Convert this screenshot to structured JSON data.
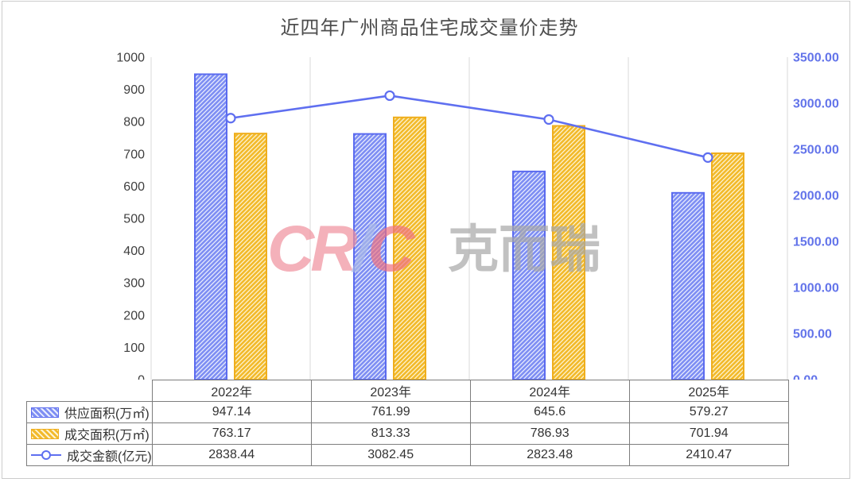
{
  "title": "近四年广州商品住宅成交量价走势",
  "watermark": {
    "parts": [
      {
        "text": "CR",
        "color": "#f0919e"
      },
      {
        "text": "/",
        "color": "#aab9e8"
      },
      {
        "text": "C",
        "color": "#ee7280"
      }
    ],
    "cjk": "克而瑞",
    "cjk_color": "#a8a8a8"
  },
  "chart_data": {
    "type": "bar+line",
    "title": "近四年广州商品住宅成交量价走势",
    "categories": [
      "2022年",
      "2023年",
      "2024年",
      "2025年"
    ],
    "series": [
      {
        "name": "供应面积(万㎡)",
        "type": "bar",
        "axis": "left",
        "values": [
          947.14,
          761.99,
          645.6,
          579.27
        ],
        "border": "#5b6bef",
        "fill_bg": "#e9edfd",
        "fill_stripe": "#7e8ef3"
      },
      {
        "name": "成交面积(万㎡)",
        "type": "bar",
        "axis": "left",
        "values": [
          763.17,
          813.33,
          786.93,
          701.94
        ],
        "border": "#efae1d",
        "fill_bg": "#fdf3d3",
        "fill_stripe": "#f2ba2b"
      },
      {
        "name": "成交金额(亿元)",
        "type": "line",
        "axis": "right",
        "values": [
          2838.44,
          3082.45,
          2823.48,
          2410.47
        ],
        "color": "#5f6ff0",
        "marker": "circle-open"
      }
    ],
    "left_axis": {
      "min": 0,
      "max": 1000,
      "ticks": [
        "0",
        "100",
        "200",
        "300",
        "400",
        "500",
        "600",
        "700",
        "800",
        "900",
        "1000"
      ],
      "label_color": "#3f3f3f"
    },
    "right_axis": {
      "min": 0,
      "max": 3500,
      "ticks": [
        "0.00",
        "500.00",
        "1000.00",
        "1500.00",
        "2000.00",
        "2500.00",
        "3000.00",
        "3500.00"
      ],
      "label_color": "#6374ea"
    },
    "grid": "vertical-category-boundaries",
    "legend_position": "table-left"
  },
  "table": {
    "year_headers": [
      "2022年",
      "2023年",
      "2024年",
      "2025年"
    ],
    "rows": [
      {
        "label": "供应面积(万㎡)",
        "swatch": "bar-blue",
        "values": [
          "947.14",
          "761.99",
          "645.6",
          "579.27"
        ]
      },
      {
        "label": "成交面积(万㎡)",
        "swatch": "bar-gold",
        "values": [
          "763.17",
          "813.33",
          "786.93",
          "701.94"
        ]
      },
      {
        "label": "成交金额(亿元)",
        "swatch": "line-marker",
        "values": [
          "2838.44",
          "3082.45",
          "2823.48",
          "2410.47"
        ]
      }
    ]
  }
}
